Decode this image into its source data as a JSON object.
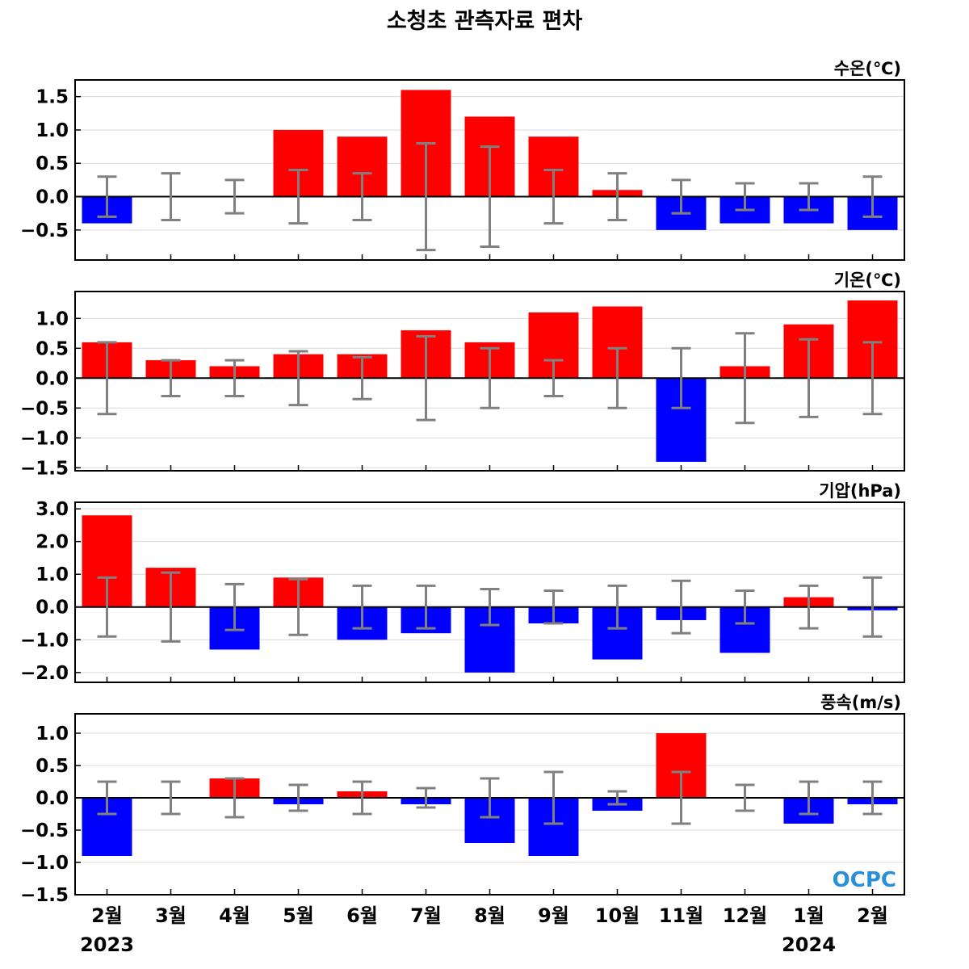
{
  "title": "소청초 관측자료 편차",
  "logo": "OCPC",
  "colors": {
    "positive": "#ff0000",
    "negative": "#0000ff",
    "error_bar": "#808080",
    "grid": "#d9d9d9",
    "logo": "#2a8fd6"
  },
  "chart_data": {
    "type": "bar",
    "categories": [
      "2월",
      "3월",
      "4월",
      "5월",
      "6월",
      "7월",
      "8월",
      "9월",
      "10월",
      "11월",
      "12월",
      "1월",
      "2월"
    ],
    "year_labels": [
      {
        "index": 0,
        "text": "2023"
      },
      {
        "index": 11,
        "text": "2024"
      }
    ],
    "panels": [
      {
        "label": "수온(℃)",
        "ylim": [
          -0.95,
          1.75
        ],
        "ticks": [
          1.5,
          1.0,
          0.5,
          0.0,
          -0.5
        ],
        "tick_labels": [
          "1.5",
          "1.0",
          "0.5",
          "0.0",
          "−0.5"
        ],
        "values": [
          -0.4,
          0.0,
          0.0,
          1.0,
          0.9,
          1.6,
          1.2,
          0.9,
          0.1,
          -0.5,
          -0.4,
          -0.4,
          -0.5
        ],
        "error": [
          0.3,
          0.35,
          0.25,
          0.4,
          0.35,
          0.8,
          0.75,
          0.4,
          0.35,
          0.25,
          0.2,
          0.2,
          0.3
        ]
      },
      {
        "label": "기온(℃)",
        "ylim": [
          -1.55,
          1.45
        ],
        "ticks": [
          1.0,
          0.5,
          0.0,
          -0.5,
          -1.0,
          -1.5
        ],
        "tick_labels": [
          "1.0",
          "0.5",
          "0.0",
          "−0.5",
          "−1.0",
          "−1.5"
        ],
        "values": [
          0.6,
          0.3,
          0.2,
          0.4,
          0.4,
          0.8,
          0.6,
          1.1,
          1.2,
          -1.4,
          0.2,
          0.9,
          1.3
        ],
        "error": [
          0.6,
          0.3,
          0.3,
          0.45,
          0.35,
          0.7,
          0.5,
          0.3,
          0.5,
          0.5,
          0.75,
          0.65,
          0.6
        ]
      },
      {
        "label": "기압(hPa)",
        "ylim": [
          -2.3,
          3.2
        ],
        "ticks": [
          3.0,
          2.0,
          1.0,
          0.0,
          -1.0,
          -2.0
        ],
        "tick_labels": [
          "3.0",
          "2.0",
          "1.0",
          "0.0",
          "−1.0",
          "−2.0"
        ],
        "values": [
          2.8,
          1.2,
          -1.3,
          0.9,
          -1.0,
          -0.8,
          -2.0,
          -0.5,
          -1.6,
          -0.4,
          -1.4,
          0.3,
          -0.1
        ],
        "error": [
          0.9,
          1.05,
          0.7,
          0.85,
          0.65,
          0.65,
          0.55,
          0.5,
          0.65,
          0.8,
          0.5,
          0.65,
          0.9
        ]
      },
      {
        "label": "풍속(m/s)",
        "ylim": [
          -1.5,
          1.3
        ],
        "ticks": [
          1.0,
          0.5,
          0.0,
          -0.5,
          -1.0,
          -1.5
        ],
        "tick_labels": [
          "1.0",
          "0.5",
          "0.0",
          "−0.5",
          "−1.0",
          "−1.5"
        ],
        "values": [
          -0.9,
          0.0,
          0.3,
          -0.1,
          0.1,
          -0.1,
          -0.7,
          -0.9,
          -0.2,
          1.0,
          0.0,
          -0.4,
          -0.1
        ],
        "error": [
          0.25,
          0.25,
          0.3,
          0.2,
          0.25,
          0.15,
          0.3,
          0.4,
          0.1,
          0.4,
          0.2,
          0.25,
          0.25
        ]
      }
    ]
  }
}
